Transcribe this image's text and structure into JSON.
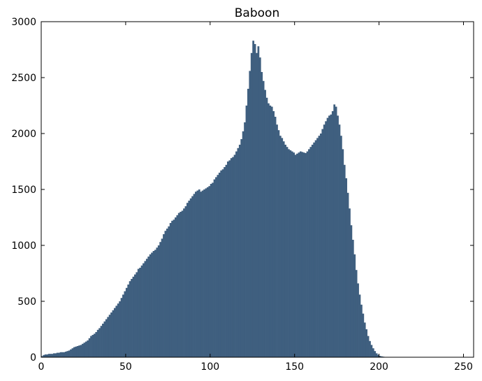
{
  "chart_data": {
    "type": "bar",
    "title": "Baboon",
    "xlabel": "",
    "ylabel": "",
    "xlim": [
      0,
      256
    ],
    "ylim": [
      0,
      3000
    ],
    "x_ticks": [
      0,
      50,
      100,
      150,
      200,
      250
    ],
    "y_ticks": [
      0,
      500,
      1000,
      1500,
      2000,
      2500,
      3000
    ],
    "grid": false,
    "legend": "none",
    "bar_color": "#3f5f7f",
    "bins_start": 0,
    "bin_width": 1,
    "values": [
      10,
      20,
      25,
      25,
      30,
      30,
      30,
      35,
      35,
      40,
      40,
      45,
      45,
      45,
      50,
      55,
      60,
      70,
      80,
      90,
      95,
      100,
      105,
      110,
      120,
      130,
      140,
      150,
      170,
      190,
      200,
      210,
      225,
      245,
      260,
      280,
      300,
      320,
      340,
      360,
      380,
      400,
      420,
      440,
      460,
      480,
      500,
      530,
      560,
      590,
      620,
      650,
      680,
      700,
      720,
      740,
      760,
      790,
      800,
      820,
      840,
      860,
      880,
      900,
      920,
      935,
      950,
      960,
      980,
      1000,
      1030,
      1060,
      1100,
      1130,
      1150,
      1170,
      1200,
      1220,
      1230,
      1250,
      1270,
      1290,
      1300,
      1310,
      1330,
      1350,
      1380,
      1400,
      1420,
      1440,
      1460,
      1480,
      1490,
      1500,
      1480,
      1490,
      1500,
      1510,
      1520,
      1530,
      1550,
      1560,
      1590,
      1610,
      1630,
      1650,
      1670,
      1680,
      1700,
      1720,
      1750,
      1760,
      1780,
      1790,
      1810,
      1840,
      1870,
      1900,
      1950,
      2020,
      2100,
      2250,
      2400,
      2560,
      2720,
      2830,
      2800,
      2720,
      2780,
      2680,
      2550,
      2470,
      2390,
      2320,
      2270,
      2250,
      2240,
      2200,
      2150,
      2080,
      2030,
      1980,
      1960,
      1930,
      1900,
      1880,
      1860,
      1850,
      1840,
      1830,
      1810,
      1820,
      1830,
      1840,
      1835,
      1830,
      1825,
      1840,
      1860,
      1880,
      1900,
      1920,
      1940,
      1960,
      1980,
      2000,
      2040,
      2080,
      2110,
      2140,
      2160,
      2170,
      2200,
      2260,
      2240,
      2160,
      2080,
      1980,
      1860,
      1720,
      1600,
      1470,
      1330,
      1180,
      1050,
      920,
      780,
      660,
      560,
      470,
      390,
      310,
      250,
      190,
      145,
      110,
      80,
      55,
      35,
      22,
      12,
      8,
      5,
      3,
      2,
      2,
      1,
      1,
      1,
      0,
      0,
      0,
      0,
      0,
      0,
      0,
      0,
      0,
      0,
      0,
      0,
      0,
      0,
      0,
      0,
      0,
      0,
      0,
      0,
      0,
      0,
      0,
      0,
      0,
      0,
      0,
      0,
      0,
      0,
      0,
      0,
      0,
      0,
      0,
      0,
      0,
      0,
      0,
      0,
      0,
      0,
      0,
      0,
      0,
      0,
      0
    ]
  }
}
